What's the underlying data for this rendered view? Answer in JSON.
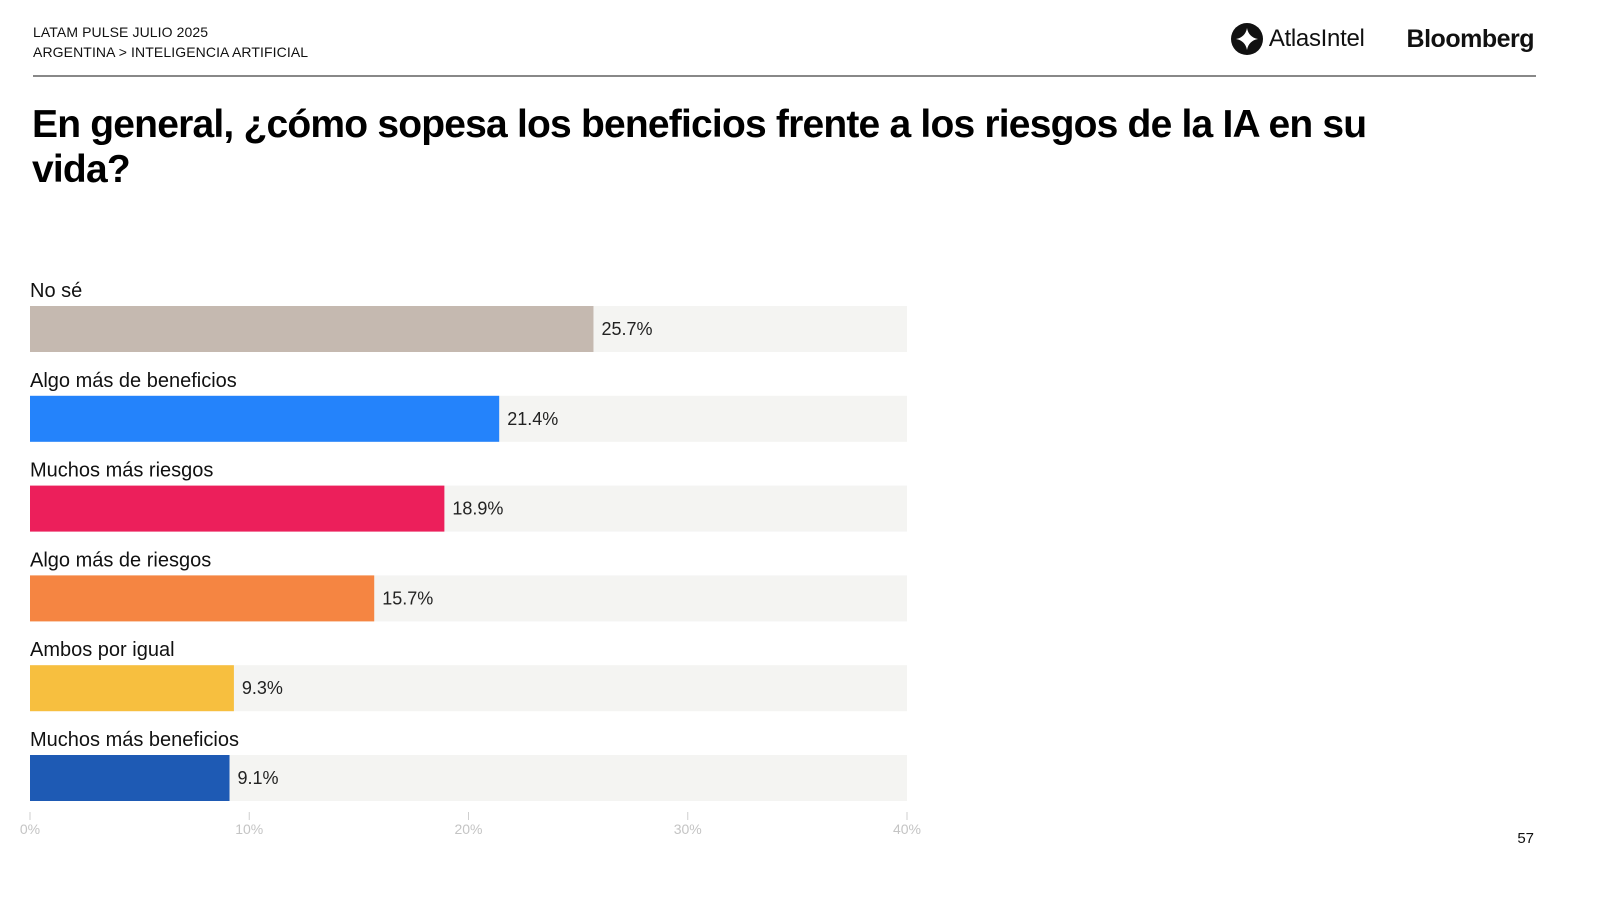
{
  "header": {
    "survey": "LATAM PULSE JULIO 2025",
    "breadcrumb": "ARGENTINA > INTELIGENCIA ARTIFICIAL",
    "logos": [
      {
        "name": "atlasintel-logo",
        "text": "AtlasIntel",
        "icon": "atlasintel-mark-icon"
      },
      {
        "name": "bloomberg-logo",
        "text": "Bloomberg"
      }
    ]
  },
  "page_number": "57",
  "chart_data": {
    "type": "bar",
    "orientation": "horizontal",
    "title": "En general, ¿cómo sopesa los beneficios frente a los riesgos de la IA en su vida?",
    "xlabel": "",
    "ylabel": "",
    "xlim": [
      0,
      40
    ],
    "x_ticks": [
      0,
      10,
      20,
      30,
      40
    ],
    "x_tick_labels": [
      "0%",
      "10%",
      "20%",
      "30%",
      "40%"
    ],
    "grid": false,
    "legend": "none",
    "track_color": "#f4f4f2",
    "categories": [
      "No sé",
      "Algo más de beneficios",
      "Muchos más riesgos",
      "Algo más de riesgos",
      "Ambos por igual",
      "Muchos más beneficios"
    ],
    "values": [
      25.7,
      21.4,
      18.9,
      15.7,
      9.3,
      9.1
    ],
    "value_labels": [
      "25.7%",
      "21.4%",
      "18.9%",
      "15.7%",
      "9.3%",
      "9.1%"
    ],
    "colors": [
      "#c5b9b0",
      "#2483fb",
      "#ec1f5b",
      "#f58542",
      "#f7bf3f",
      "#1e5ab4"
    ]
  }
}
